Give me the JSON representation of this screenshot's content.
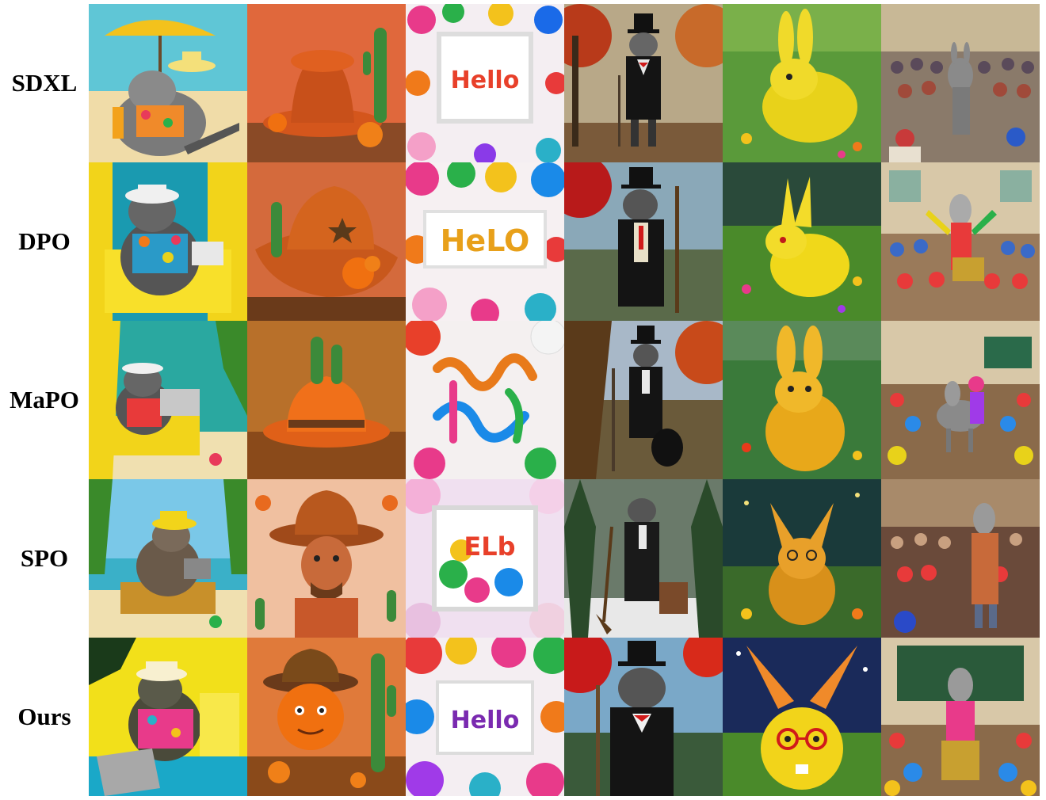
{
  "rows": [
    {
      "label": "SDXL"
    },
    {
      "label": "DPO"
    },
    {
      "label": "MaPO"
    },
    {
      "label": "SPO"
    },
    {
      "label": "Ours"
    }
  ],
  "hello_texts": [
    "Hello",
    "HeLO",
    "",
    "ELb",
    "Hello"
  ],
  "colors": {
    "orange": "#e86a1e",
    "yellow": "#f2d41a",
    "teal": "#1aa8b0",
    "green": "#3a8a2a"
  }
}
